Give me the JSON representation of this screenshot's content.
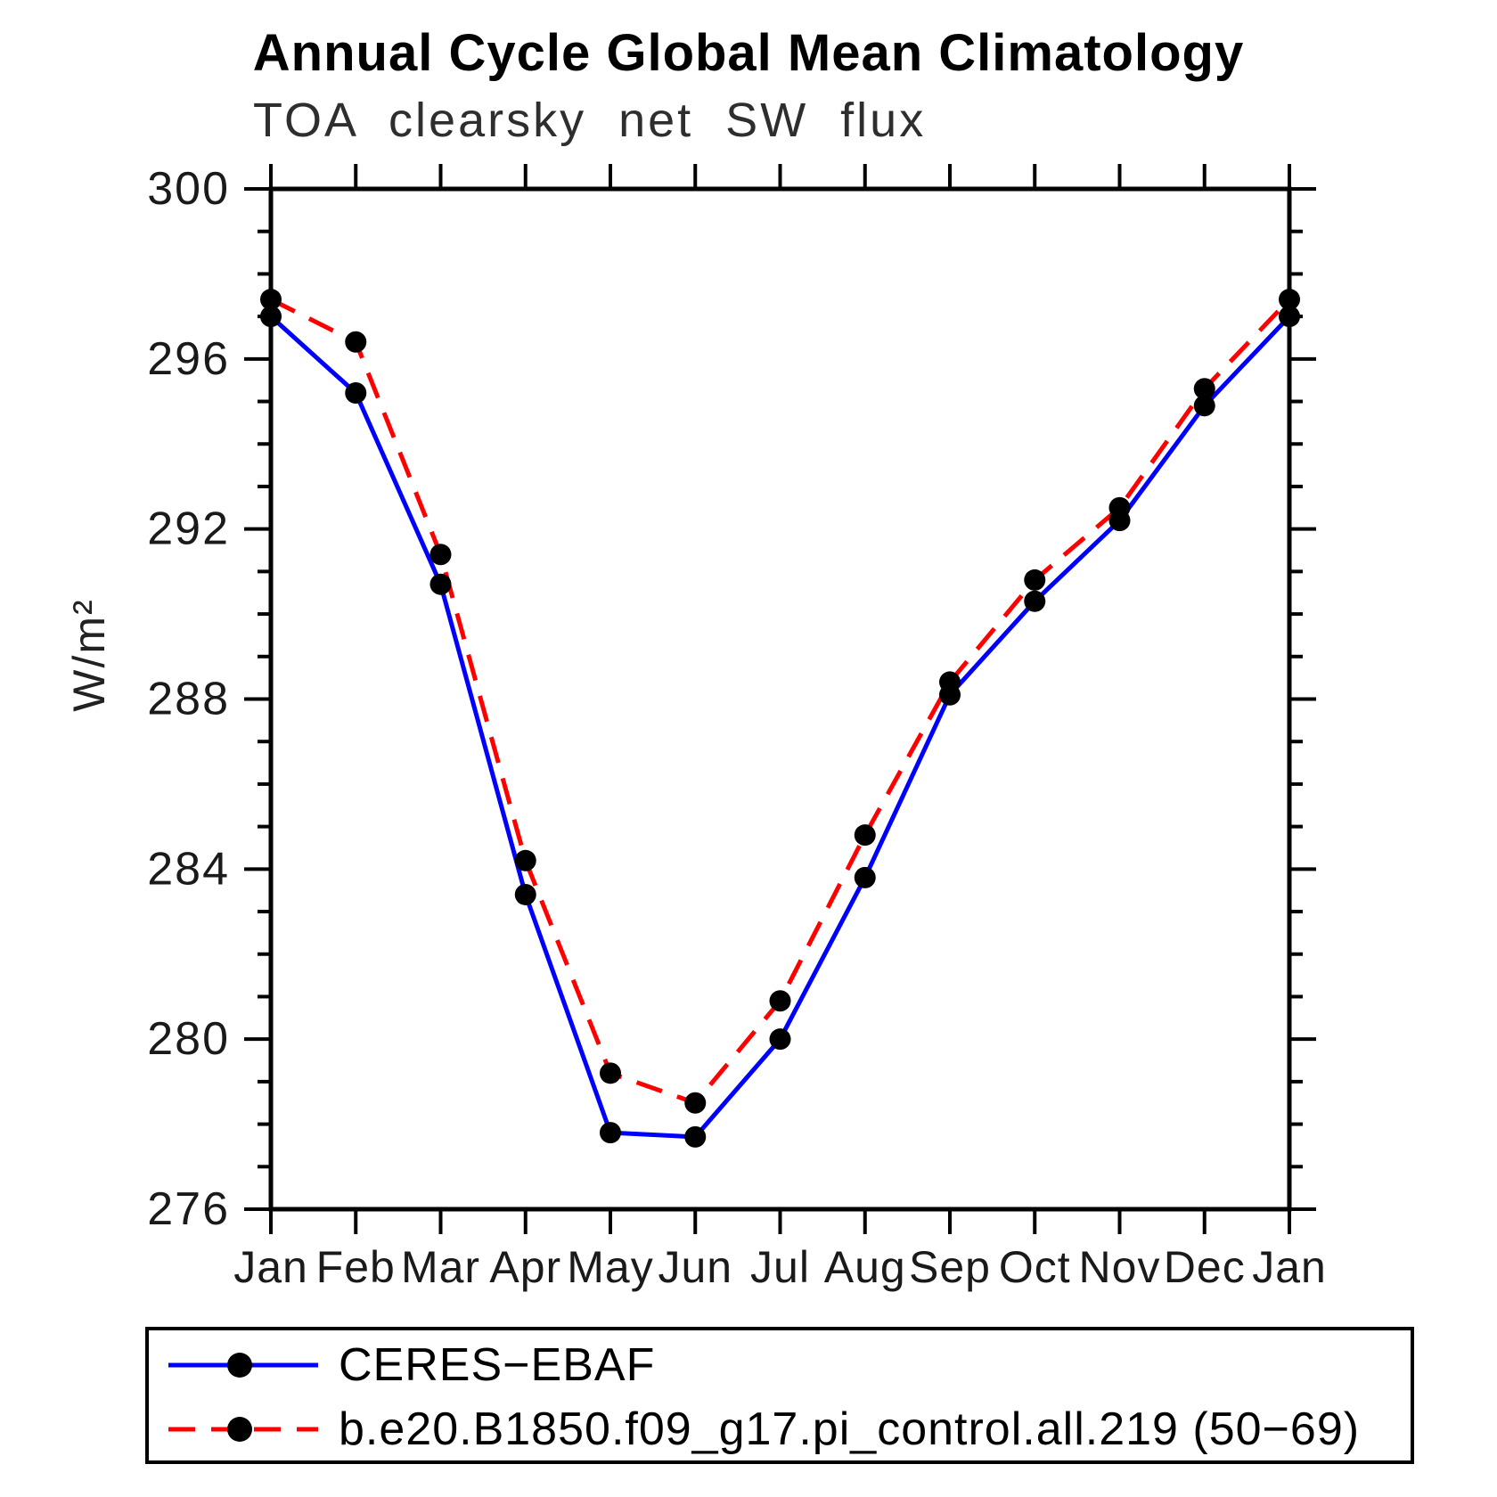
{
  "chart_data": {
    "type": "line",
    "title": "Annual Cycle Global Mean Climatology",
    "subtitle": "TOA clearsky net SW flux",
    "ylabel": "W/m²",
    "xlabel": "",
    "categories": [
      "Jan",
      "Feb",
      "Mar",
      "Apr",
      "May",
      "Jun",
      "Jul",
      "Aug",
      "Sep",
      "Oct",
      "Nov",
      "Dec",
      "Jan"
    ],
    "series": [
      {
        "name": "CERES−EBAF",
        "color": "#0000ff",
        "line_style": "solid",
        "marker": "circle",
        "marker_color": "#000000",
        "values": [
          297.0,
          295.2,
          290.7,
          283.4,
          277.8,
          277.7,
          280.0,
          283.8,
          288.1,
          290.3,
          292.2,
          294.9,
          297.0
        ]
      },
      {
        "name": "b.e20.B1850.f09_g17.pi_control.all.219 (50−69)",
        "color": "#ff0000",
        "line_style": "dashed",
        "marker": "circle",
        "marker_color": "#000000",
        "values": [
          297.4,
          296.4,
          291.4,
          284.2,
          279.2,
          278.5,
          280.9,
          284.8,
          288.4,
          290.8,
          292.5,
          295.3,
          297.4
        ]
      }
    ],
    "ylim": [
      276,
      300
    ],
    "y_ticks": [
      276,
      280,
      284,
      288,
      292,
      296,
      300
    ],
    "y_minor_step": 1,
    "grid": false,
    "axis_color": "#000000",
    "legend_position": "bottom"
  }
}
